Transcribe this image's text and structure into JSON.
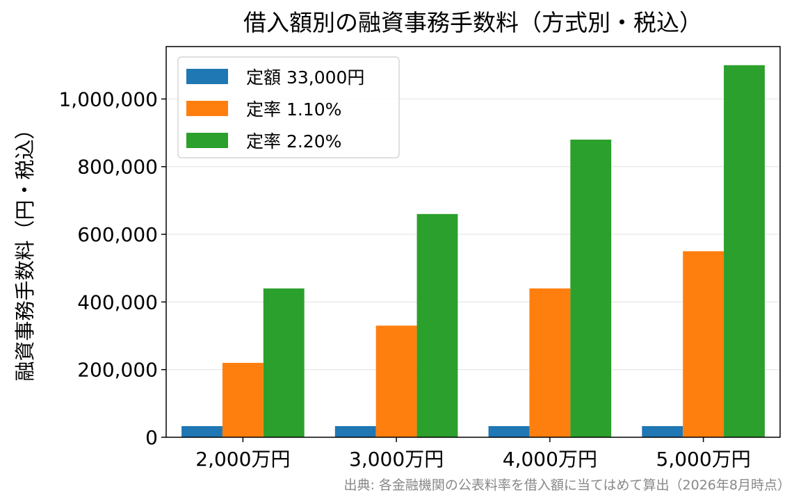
{
  "chart_data": {
    "type": "bar",
    "title": "借入額別の融資事務手数料（方式別・税込）",
    "xlabel": "",
    "ylabel": "融資事務手数料（円・税込）",
    "categories": [
      "2,000万円",
      "3,000万円",
      "4,000万円",
      "5,000万円"
    ],
    "series": [
      {
        "name": "定額 33,000円",
        "color": "#1f77b4",
        "values": [
          33000,
          33000,
          33000,
          33000
        ]
      },
      {
        "name": "定率 1.10%",
        "color": "#ff7f0e",
        "values": [
          220000,
          330000,
          440000,
          550000
        ]
      },
      {
        "name": "定率 2.20%",
        "color": "#2ca02c",
        "values": [
          440000,
          660000,
          880000,
          1100000
        ]
      }
    ],
    "ylim": [
      0,
      1155000
    ],
    "yticks": [
      0,
      200000,
      400000,
      600000,
      800000,
      1000000
    ],
    "ytick_labels": [
      "0",
      "200,000",
      "400,000",
      "600,000",
      "800,000",
      "1,000,000"
    ],
    "grid": "horizontal",
    "legend": "top-left"
  },
  "source_note": "出典: 各金融機関の公表料率を借入額に当てはめて算出（2026年8月時点）"
}
